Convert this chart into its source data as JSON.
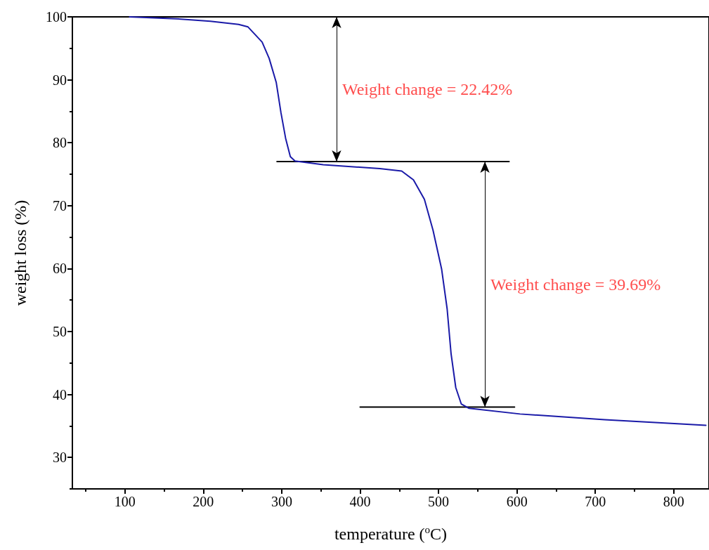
{
  "chart_data": {
    "type": "line",
    "xlabel": "temperature ($^{o}$C)",
    "ylabel": "weight loss (%)",
    "xlim": [
      33,
      845
    ],
    "xticks": [
      100,
      200,
      300,
      400,
      500,
      600,
      700,
      800
    ],
    "ylim": [
      25,
      100
    ],
    "yticks": [
      30,
      40,
      50,
      60,
      70,
      80,
      90,
      100
    ],
    "grid": false,
    "marker": "none",
    "line_style": "solid",
    "series": [
      {
        "color": "#1a1aa8",
        "x": [
          106,
          165,
          209,
          245,
          257,
          275,
          284,
          293,
          299,
          305,
          311,
          317,
          353,
          425,
          453,
          468,
          482,
          493,
          504,
          511,
          516,
          522,
          529,
          539,
          604,
          712,
          841
        ],
        "values": [
          100,
          99.7,
          99.3,
          98.8,
          98.4,
          96.0,
          93.4,
          89.6,
          84.8,
          80.7,
          77.8,
          77.1,
          76.5,
          75.9,
          75.5,
          74.1,
          71.0,
          66.1,
          59.9,
          53.6,
          46.5,
          41.1,
          38.5,
          37.8,
          36.9,
          36.0,
          35.1
        ]
      },
      {
        "color": "#000000",
        "x": [
          294,
          590
        ],
        "values": [
          77,
          77
        ]
      },
      {
        "color": "#000000",
        "x": [
          400,
          597
        ],
        "values": [
          38,
          38
        ]
      }
    ],
    "annotations": [
      "Weight change = 22.42%",
      "Weight change = 39.69%"
    ]
  }
}
